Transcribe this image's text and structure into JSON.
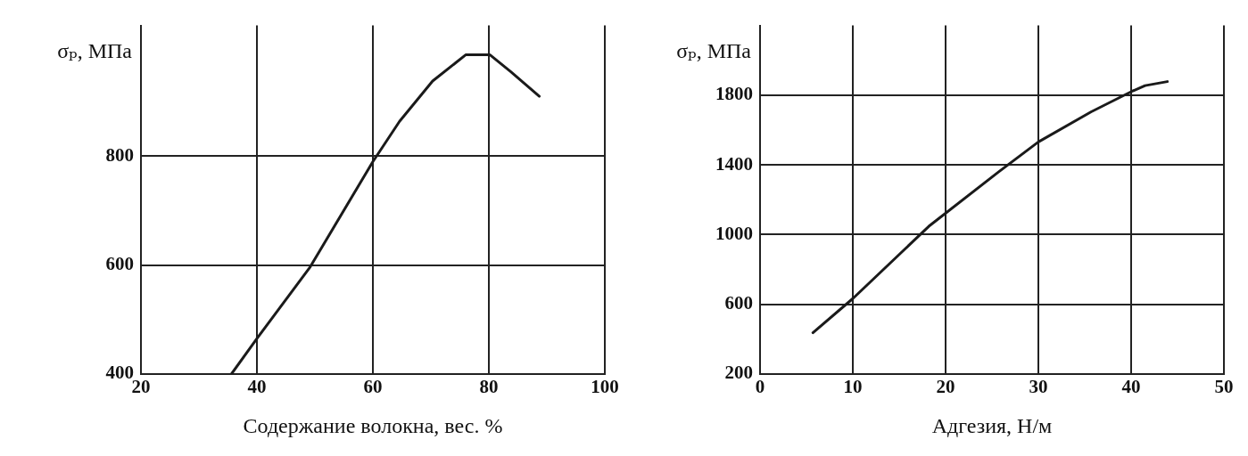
{
  "chart_data": [
    {
      "type": "line",
      "ylabel": "σₚ, МПа",
      "xlabel": "Содержание волокна, вес. %",
      "xlim": [
        20,
        100
      ],
      "xticks": [
        20,
        40,
        60,
        80,
        100
      ],
      "ylim": [
        400,
        1040
      ],
      "yticks": [
        400,
        600,
        800
      ],
      "grid": true,
      "legend": false,
      "marker": "none",
      "line_style": "solid",
      "series": [
        {
          "color": "#1a1a1a",
          "x": [
            35.6,
            40,
            49.2,
            60,
            64.6,
            70.3,
            76,
            80.2,
            83.8,
            88.7
          ],
          "values": [
            400,
            465,
            597,
            790,
            864,
            938,
            986,
            986,
            955,
            910
          ]
        }
      ]
    },
    {
      "type": "line",
      "ylabel": "σₚ, МПа",
      "xlabel": "Адгезия, Н/м",
      "xlim": [
        0,
        50
      ],
      "xticks": [
        0,
        10,
        20,
        30,
        40,
        50
      ],
      "ylim": [
        200,
        2200
      ],
      "yticks": [
        200,
        600,
        1000,
        1400,
        1800
      ],
      "grid": true,
      "legend": false,
      "marker": "none",
      "line_style": "solid",
      "series": [
        {
          "color": "#1a1a1a",
          "x": [
            5.7,
            10,
            18.2,
            25.7,
            30,
            35.7,
            40,
            41.5,
            43.9
          ],
          "values": [
            437,
            633,
            1048,
            1359,
            1532,
            1705,
            1820,
            1855,
            1878
          ]
        }
      ]
    }
  ]
}
